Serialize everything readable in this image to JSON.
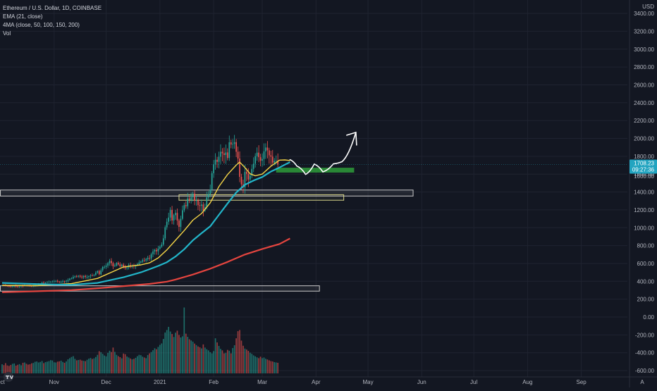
{
  "header": {
    "symbol": "Ethereum / U.S. Dollar, 1D, COINBASE",
    "indicators": [
      "EMA (21, close)",
      "4MA (close, 50, 100, 150, 200)",
      "Vol"
    ]
  },
  "price_axis": {
    "currency": "USD",
    "current_price": "1708.23",
    "countdown": "09:27:36",
    "hidden_label": "1600.00"
  },
  "colors": {
    "background": "#131722",
    "up": "#26a69a",
    "down": "#ef5350",
    "ema21": "#f5d547",
    "ma50": "#22b5c9",
    "ma200": "#e5453f",
    "support_zone": "#2e9c3a",
    "arrow": "#ffffff"
  },
  "chart_data": {
    "type": "candlestick",
    "title": "Ethereum / U.S. Dollar, 1D, COINBASE",
    "ylabel": "USD",
    "ylim": [
      -650,
      3500
    ],
    "price_ticks": [
      3400,
      3200,
      3000,
      2800,
      2600,
      2400,
      2200,
      2000,
      1800,
      1600,
      1400,
      1200,
      1000,
      800,
      600,
      400,
      200
    ],
    "volume_ticks": [
      0,
      -200,
      -400,
      -600
    ],
    "price_tick_labels": [
      "3400.00",
      "3200.00",
      "3000.00",
      "2800.00",
      "2600.00",
      "2400.00",
      "2200.00",
      "2000.00",
      "1800.00",
      "1600.00",
      "1400.00",
      "1200.00",
      "1000.00",
      "800.00",
      "600.00",
      "400.00",
      "200.00"
    ],
    "volume_tick_labels": [
      "0.00",
      "-200.00",
      "-400.00",
      "-600.00"
    ],
    "x_labels": [
      "Oct",
      "Nov",
      "Dec",
      "2021",
      "Feb",
      "Mar",
      "Apr",
      "May",
      "Jun",
      "Jul",
      "Aug",
      "Sep"
    ],
    "x_label_days": [
      -1,
      30,
      60,
      91,
      122,
      150,
      181,
      211,
      242,
      272,
      303,
      334
    ],
    "closes": [
      355,
      354,
      351,
      347,
      343,
      342,
      345,
      348,
      344,
      342,
      347,
      352,
      350,
      353,
      352,
      350,
      349,
      346,
      350,
      362,
      365,
      366,
      374,
      385,
      381,
      385,
      390,
      392,
      395,
      396,
      398,
      404,
      398,
      393,
      396,
      401,
      398,
      405,
      414,
      429,
      431,
      448,
      455,
      453,
      462,
      452,
      444,
      460,
      449,
      450,
      457,
      465,
      463,
      471,
      496,
      515,
      479,
      523,
      561,
      562,
      576,
      603,
      628,
      604,
      568,
      576,
      606,
      589,
      569,
      586,
      560,
      547,
      556,
      582,
      571,
      575,
      569,
      580,
      592,
      611,
      620,
      636,
      633,
      649,
      662,
      656,
      703,
      734,
      752,
      736,
      765,
      788,
      811,
      881,
      1005,
      1067,
      1114,
      1199,
      1081,
      1141,
      1166,
      1080,
      1010,
      1100,
      1195,
      1253,
      1241,
      1327,
      1313,
      1342,
      1382,
      1302,
      1306,
      1253,
      1245,
      1260,
      1193,
      1228,
      1340,
      1377,
      1429,
      1610,
      1710,
      1761,
      1738,
      1795,
      1851,
      1833,
      1815,
      1843,
      1781,
      1957,
      1932,
      1938,
      1958,
      1851,
      1775,
      1570,
      1486,
      1452,
      1626,
      1604,
      1540,
      1584,
      1659,
      1717,
      1801,
      1841,
      1790,
      1750,
      1770,
      1855,
      1898,
      1867,
      1811,
      1796,
      1729,
      1748,
      1753,
      1708
    ],
    "volumes": [
      55,
      50,
      62,
      48,
      45,
      51,
      58,
      60,
      47,
      52,
      56,
      49,
      64,
      66,
      58,
      53,
      55,
      61,
      63,
      70,
      72,
      66,
      69,
      75,
      62,
      68,
      71,
      74,
      80,
      78,
      67,
      66,
      71,
      73,
      77,
      69,
      64,
      72,
      85,
      92,
      99,
      104,
      88,
      79,
      81,
      83,
      78,
      76,
      74,
      82,
      89,
      93,
      87,
      91,
      99,
      112,
      134,
      128,
      118,
      108,
      103,
      124,
      137,
      129,
      156,
      130,
      112,
      104,
      98,
      91,
      120,
      116,
      102,
      96,
      90,
      85,
      88,
      94,
      104,
      112,
      110,
      101,
      96,
      92,
      111,
      121,
      129,
      140,
      152,
      146,
      160,
      172,
      181,
      208,
      247,
      262,
      281,
      253,
      238,
      220,
      246,
      258,
      232,
      217,
      224,
      398,
      240,
      221,
      206,
      199,
      192,
      180,
      171,
      163,
      158,
      151,
      175,
      156,
      146,
      139,
      128,
      121,
      135,
      212,
      187,
      166,
      148,
      139,
      121,
      124,
      142,
      137,
      121,
      153,
      170,
      212,
      255,
      262,
      198,
      167,
      150,
      144,
      136,
      125,
      118,
      109,
      103,
      97,
      92,
      101,
      92,
      96,
      88,
      84,
      79,
      74,
      72,
      68,
      66,
      64
    ],
    "series": [
      {
        "name": "EMA (21, close)",
        "values": [
          [
            0,
            355
          ],
          [
            20,
            351
          ],
          [
            40,
            374
          ],
          [
            55,
            432
          ],
          [
            70,
            561
          ],
          [
            80,
            584
          ],
          [
            85,
            607
          ],
          [
            90,
            662
          ],
          [
            95,
            752
          ],
          [
            100,
            860
          ],
          [
            105,
            968
          ],
          [
            110,
            1085
          ],
          [
            115,
            1160
          ],
          [
            120,
            1279
          ],
          [
            125,
            1460
          ],
          [
            130,
            1596
          ],
          [
            135,
            1701
          ],
          [
            137,
            1735
          ],
          [
            140,
            1674
          ],
          [
            143,
            1604
          ],
          [
            146,
            1582
          ],
          [
            150,
            1601
          ],
          [
            155,
            1689
          ],
          [
            158,
            1730
          ],
          [
            160,
            1757
          ],
          [
            163,
            1759
          ],
          [
            166,
            1752
          ]
        ]
      },
      {
        "name": "MA 50",
        "values": [
          [
            0,
            382
          ],
          [
            20,
            369
          ],
          [
            40,
            360
          ],
          [
            55,
            382
          ],
          [
            70,
            445
          ],
          [
            80,
            500
          ],
          [
            85,
            536
          ],
          [
            90,
            572
          ],
          [
            95,
            614
          ],
          [
            100,
            678
          ],
          [
            105,
            759
          ],
          [
            110,
            859
          ],
          [
            115,
            939
          ],
          [
            120,
            1015
          ],
          [
            125,
            1144
          ],
          [
            130,
            1272
          ],
          [
            135,
            1394
          ],
          [
            140,
            1482
          ],
          [
            145,
            1529
          ],
          [
            150,
            1568
          ],
          [
            155,
            1629
          ],
          [
            160,
            1675
          ],
          [
            163,
            1706
          ],
          [
            166,
            1735
          ]
        ]
      },
      {
        "name": "MA 200",
        "values": [
          [
            0,
            278
          ],
          [
            20,
            289
          ],
          [
            40,
            301
          ],
          [
            55,
            322
          ],
          [
            70,
            346
          ],
          [
            85,
            371
          ],
          [
            95,
            396
          ],
          [
            100,
            420
          ],
          [
            110,
            476
          ],
          [
            120,
            541
          ],
          [
            130,
            617
          ],
          [
            140,
            700
          ],
          [
            150,
            762
          ],
          [
            160,
            818
          ],
          [
            166,
            880
          ]
        ]
      }
    ],
    "zones": [
      {
        "name": "support-zone",
        "price_low": 1618,
        "price_high": 1672,
        "day_start": 158,
        "day_end": 203
      },
      {
        "name": "range-top",
        "price_low": 1355,
        "price_high": 1422,
        "day_start": -1,
        "day_end": 237
      },
      {
        "name": "range-inner",
        "price_low": 1308,
        "price_high": 1370,
        "day_start": 102,
        "day_end": 197
      },
      {
        "name": "base-zone",
        "price_low": 290,
        "price_high": 350,
        "day_start": -1,
        "day_end": 183
      }
    ],
    "projection": [
      [
        166,
        1762
      ],
      [
        170,
        1690
      ],
      [
        175,
        1598
      ],
      [
        180,
        1713
      ],
      [
        185,
        1625
      ],
      [
        191,
        1715
      ],
      [
        196,
        1740
      ],
      [
        204,
        2068
      ]
    ],
    "grid": true
  }
}
